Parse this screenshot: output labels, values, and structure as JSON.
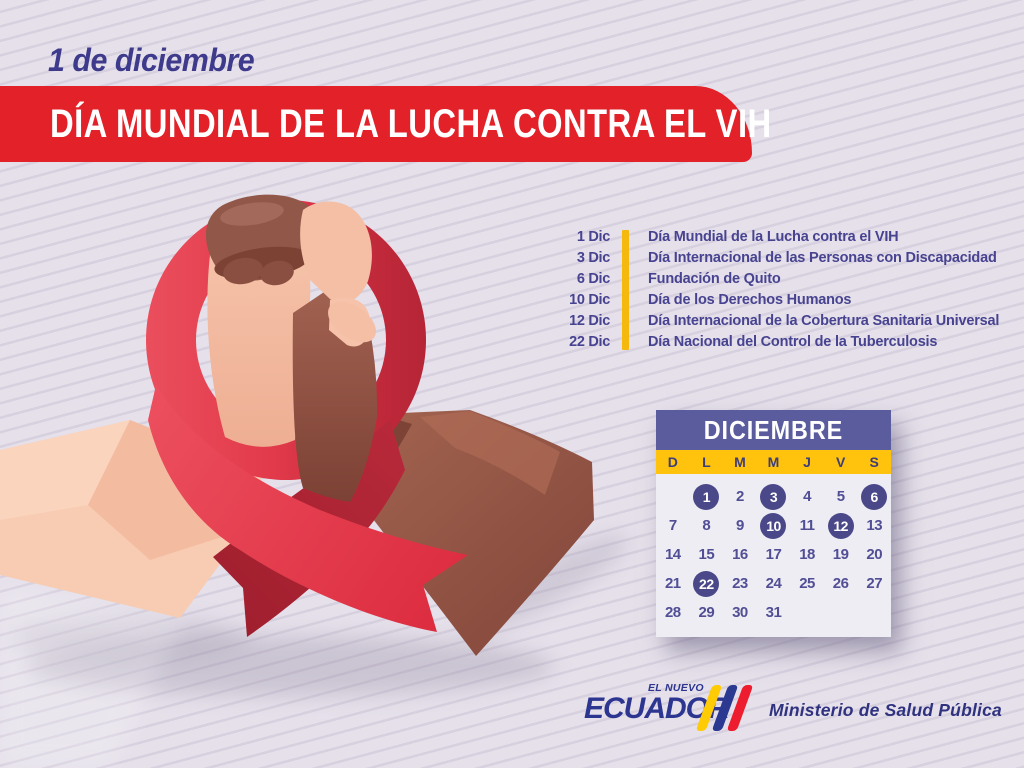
{
  "header": {
    "date_label": "1 de diciembre",
    "title": "DÍA MUNDIAL DE LA LUCHA CONTRA EL VIH"
  },
  "events": [
    {
      "date": "1 Dic",
      "name": "Día Mundial de la Lucha contra el VIH"
    },
    {
      "date": "3 Dic",
      "name": "Día Internacional de las Personas con Discapacidad"
    },
    {
      "date": "6 Dic",
      "name": "Fundación de Quito"
    },
    {
      "date": "10 Dic",
      "name": "Día de los Derechos Humanos"
    },
    {
      "date": "12 Dic",
      "name": "Día Internacional de la Cobertura Sanitaria Universal"
    },
    {
      "date": "22 Dic",
      "name": "Día Nacional del Control de la Tuberculosis"
    }
  ],
  "calendar": {
    "month": "DICIEMBRE",
    "day_headers": [
      "D",
      "L",
      "M",
      "M",
      "J",
      "V",
      "S"
    ],
    "weeks": [
      [
        "",
        "1",
        "2",
        "3",
        "4",
        "5",
        "6"
      ],
      [
        "7",
        "8",
        "9",
        "10",
        "11",
        "12",
        "13"
      ],
      [
        "14",
        "15",
        "16",
        "17",
        "18",
        "19",
        "20"
      ],
      [
        "21",
        "22",
        "23",
        "24",
        "25",
        "26",
        "27"
      ],
      [
        "28",
        "29",
        "30",
        "31",
        "",
        "",
        ""
      ]
    ],
    "highlighted_days": [
      "1",
      "3",
      "6",
      "10",
      "12",
      "22"
    ]
  },
  "footer": {
    "logo_small": "EL NUEVO",
    "logo_main": "ECUADOR",
    "ministry": "Ministerio de Salud Pública"
  },
  "colors": {
    "banner_red": "#e32128",
    "navy_text": "#3e3a8c",
    "accent_yellow": "#f5b90d",
    "calendar_header_purple": "#5a5c9e",
    "calendar_yellow": "#ffc30e",
    "highlight_circle": "#4b4889",
    "ribbon_red": "#e23a4b",
    "footer_navy": "#2c3590"
  },
  "illustration": {
    "name": "clasped-hands-red-awareness-ribbon"
  }
}
